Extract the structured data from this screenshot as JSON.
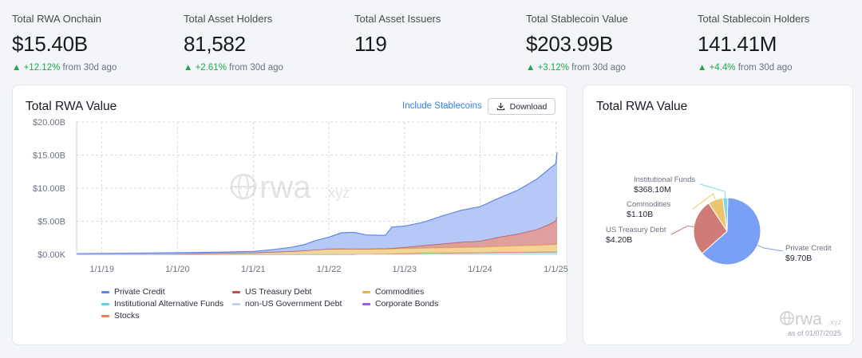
{
  "stats": [
    {
      "label": "Total RWA Onchain",
      "value": "$15.40B",
      "change": "+12.12%",
      "suffix": "from 30d ago"
    },
    {
      "label": "Total Asset Holders",
      "value": "81,582",
      "change": "+2.61%",
      "suffix": "from 30d ago"
    },
    {
      "label": "Total Asset Issuers",
      "value": "119",
      "change": "",
      "suffix": ""
    },
    {
      "label": "Total Stablecoin Value",
      "value": "$203.99B",
      "change": "+3.12%",
      "suffix": "from 30d ago"
    },
    {
      "label": "Total Stablecoin Holders",
      "value": "141.41M",
      "change": "+4.4%",
      "suffix": "from 30d ago"
    }
  ],
  "left_card": {
    "title": "Total RWA Value",
    "include_link": "Include Stablecoins",
    "download_label": "Download",
    "watermark_main": "rwa",
    "watermark_sub": ".xyz"
  },
  "right_card": {
    "title": "Total RWA Value",
    "watermark_main": "rwa",
    "watermark_sub": ".xyz",
    "as_of": "as of 01/07/2025"
  },
  "colors": {
    "private_credit": "#5b86ef",
    "us_treasury": "#c0504d",
    "commodities": "#e6b54a",
    "institutional": "#5fd3e0",
    "non_us_gov": "#c7d2e8",
    "corporate_bonds": "#9b5de5",
    "stocks": "#f07d4a",
    "up": "#22a652",
    "link": "#2f80ed"
  },
  "chart_data": [
    {
      "type": "area",
      "title": "Total RWA Value",
      "x_ticks": [
        "1/1/19",
        "1/1/20",
        "1/1/21",
        "1/1/22",
        "1/1/23",
        "1/1/24",
        "1/1/25"
      ],
      "y_ticks": [
        "$0.00K",
        "$5.00B",
        "$10.00B",
        "$15.00B",
        "$20.00B"
      ],
      "ylim": [
        0,
        20
      ],
      "x_range": [
        "2018-09-01",
        "2025-01-07"
      ],
      "stacked": true,
      "grid": true,
      "legend_placement": "bottom",
      "legend": [
        "Private Credit",
        "US Treasury Debt",
        "Commodities",
        "Institutional Alternative Funds",
        "non-US Government Debt",
        "Corporate Bonds",
        "Stocks"
      ],
      "x": [
        "2018-09-01",
        "2019-01-01",
        "2019-07-01",
        "2020-01-01",
        "2020-07-01",
        "2021-01-01",
        "2021-04-01",
        "2021-07-01",
        "2021-09-01",
        "2021-11-01",
        "2022-01-01",
        "2022-03-01",
        "2022-05-01",
        "2022-07-01",
        "2022-09-01",
        "2022-10-01",
        "2022-11-01",
        "2023-01-01",
        "2023-04-01",
        "2023-07-01",
        "2023-10-01",
        "2024-01-01",
        "2024-04-01",
        "2024-07-01",
        "2024-10-01",
        "2024-12-01",
        "2025-01-01",
        "2025-01-07"
      ],
      "series": [
        {
          "name": "Private Credit",
          "values": [
            0.1,
            0.12,
            0.13,
            0.14,
            0.15,
            0.2,
            0.35,
            0.6,
            0.9,
            1.4,
            1.8,
            2.4,
            2.5,
            2.1,
            2.0,
            2.0,
            3.2,
            3.2,
            3.5,
            4.2,
            4.8,
            5.2,
            5.9,
            6.6,
            7.6,
            8.4,
            8.6,
            9.7
          ]
        },
        {
          "name": "US Treasury Debt",
          "values": [
            0,
            0,
            0,
            0,
            0,
            0,
            0,
            0,
            0,
            0,
            0,
            0,
            0,
            0,
            0.05,
            0.05,
            0.1,
            0.2,
            0.4,
            0.6,
            0.8,
            0.9,
            1.4,
            1.8,
            2.4,
            3.1,
            3.6,
            4.2
          ]
        },
        {
          "name": "Commodities",
          "values": [
            0.01,
            0.02,
            0.05,
            0.1,
            0.18,
            0.25,
            0.35,
            0.45,
            0.55,
            0.7,
            0.8,
            0.85,
            0.82,
            0.78,
            0.75,
            0.72,
            0.7,
            0.72,
            0.75,
            0.78,
            0.8,
            0.82,
            0.9,
            0.95,
            1.0,
            1.05,
            1.08,
            1.1
          ]
        },
        {
          "name": "Institutional Alternative Funds",
          "values": [
            0,
            0,
            0,
            0,
            0,
            0,
            0,
            0,
            0,
            0,
            0,
            0,
            0,
            0.05,
            0.08,
            0.1,
            0.12,
            0.15,
            0.18,
            0.2,
            0.22,
            0.25,
            0.28,
            0.3,
            0.33,
            0.35,
            0.36,
            0.37
          ]
        },
        {
          "name": "non-US Government Debt",
          "values": [
            0,
            0,
            0,
            0,
            0,
            0,
            0,
            0,
            0,
            0,
            0,
            0,
            0,
            0,
            0,
            0,
            0,
            0,
            0.01,
            0.01,
            0.02,
            0.02,
            0.02,
            0.03,
            0.03,
            0.03,
            0.03,
            0.03
          ]
        },
        {
          "name": "Corporate Bonds",
          "values": [
            0,
            0,
            0,
            0,
            0,
            0,
            0,
            0,
            0,
            0,
            0,
            0,
            0,
            0,
            0,
            0,
            0,
            0,
            0,
            0,
            0.01,
            0.01,
            0.01,
            0.01,
            0.01,
            0.01,
            0.01,
            0.01
          ]
        },
        {
          "name": "Stocks",
          "values": [
            0,
            0,
            0,
            0,
            0,
            0,
            0,
            0,
            0,
            0,
            0,
            0,
            0,
            0,
            0,
            0,
            0,
            0,
            0,
            0,
            0,
            0,
            0,
            0,
            0,
            0,
            0,
            0
          ]
        }
      ]
    },
    {
      "type": "pie",
      "title": "Total RWA Value",
      "slices": [
        {
          "name": "Private Credit",
          "value": 9.7,
          "label": "$9.70B",
          "color": "#7aa0f5"
        },
        {
          "name": "US Treasury Debt",
          "value": 4.2,
          "label": "$4.20B",
          "color": "#cf7b77"
        },
        {
          "name": "Commodities",
          "value": 1.1,
          "label": "$1.10B",
          "color": "#ecc66e"
        },
        {
          "name": "Institutional Funds",
          "value": 0.368,
          "label": "$368.10M",
          "color": "#7fd9e4"
        }
      ]
    }
  ]
}
